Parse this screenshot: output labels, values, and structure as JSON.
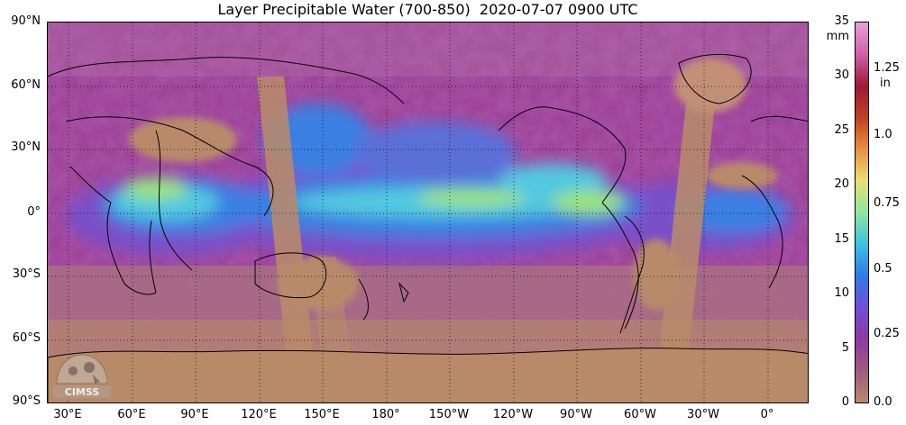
{
  "title": "Layer Precipitable Water (700-850)  2020-07-07 0900 UTC",
  "latitude_labels": [
    "90°N",
    "60°N",
    "30°N",
    "0°",
    "30°S",
    "60°S",
    "90°S"
  ],
  "longitude_labels": [
    "30°E",
    "60°E",
    "90°E",
    "120°E",
    "150°E",
    "180°",
    "150°W",
    "120°W",
    "90°W",
    "60°W",
    "30°W",
    "0°"
  ],
  "colorbar": {
    "mm_unit": "mm",
    "in_unit_top": "1.25",
    "in_unit": "in",
    "mm_ticks": [
      "35",
      "30",
      "25",
      "20",
      "15",
      "10",
      "5",
      "0"
    ],
    "in_ticks": [
      "1.0",
      "0.75",
      "0.5",
      "0.25",
      "0.0"
    ],
    "colors": [
      "#b88a6a",
      "#a2597f",
      "#8e3aa0",
      "#7050d8",
      "#2f7ae8",
      "#39c4e0",
      "#8fe6a0",
      "#e8e070",
      "#e89040",
      "#c04020",
      "#a01838",
      "#d060a8",
      "#e8a0d8"
    ]
  },
  "logo_text": "CIMSS",
  "map_colors": {
    "dry_land_mask": "#b8876a",
    "magenta_moderate": "#9a3f95",
    "purple_moist": "#7a4fc8",
    "blue_moist": "#3a7fe2",
    "cyan_wet": "#52c8e0",
    "green_very_wet": "#9be37c",
    "coastline": "#000000",
    "grid": "#000000"
  }
}
